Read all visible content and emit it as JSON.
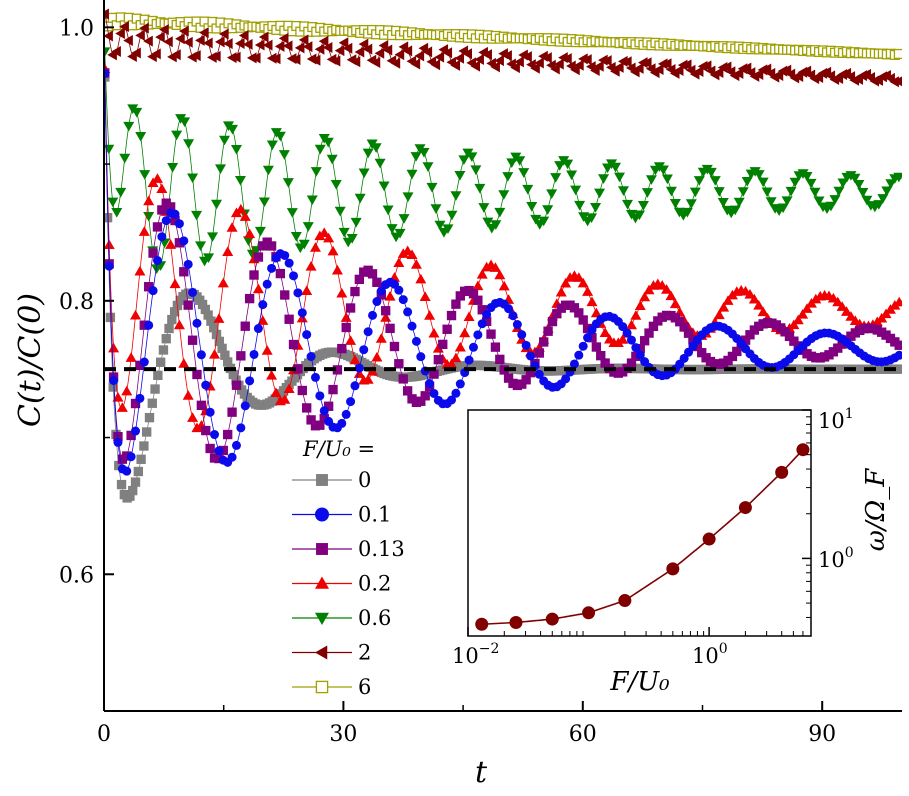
{
  "chart_data": [
    {
      "type": "scatter",
      "title": "",
      "xlabel": "t",
      "ylabel": "C(t)/C(0)",
      "xlim": [
        0,
        100
      ],
      "ylim": [
        0.5,
        1.02
      ],
      "x_ticks": [
        "0",
        "30",
        "60",
        "90"
      ],
      "y_ticks": [
        "0.6",
        "0.8",
        "1.0"
      ],
      "legend_title": "F/U0 =",
      "legend_position": "lower-left",
      "reference_line": {
        "style": "dashed",
        "color": "#000000",
        "value": 0.75
      },
      "series": [
        {
          "name": "0",
          "marker": "square",
          "color": "#808080",
          "F": 0,
          "amplitude": 0.14,
          "frequency": 0.35,
          "decay_time": 12,
          "level": 0.75
        },
        {
          "name": "0.1",
          "marker": "circle",
          "color": "#0a0aea",
          "F": 0.1,
          "amplitude": 0.125,
          "frequency": 0.46,
          "decay_time": 38,
          "level": 0.765
        },
        {
          "name": "0.13",
          "marker": "square",
          "color": "#800080",
          "F": 0.13,
          "amplitude": 0.125,
          "frequency": 0.5,
          "decay_time": 38,
          "level": 0.77
        },
        {
          "name": "0.2",
          "marker": "triangle-up",
          "color": "#f00000",
          "F": 0.2,
          "amplitude": 0.115,
          "frequency": 0.6,
          "decay_time": 40,
          "level": 0.792
        },
        {
          "name": "0.6",
          "marker": "triangle-down",
          "color": "#008000",
          "F": 0.6,
          "amplitude": 0.065,
          "frequency": 1.05,
          "decay_time": 55,
          "level": 0.88
        },
        {
          "name": "2",
          "marker": "triangle-left",
          "color": "#800000",
          "F": 2,
          "amplitude": 0.012,
          "frequency": 2.5,
          "decay_time": 60,
          "level": 0.99
        },
        {
          "name": "6",
          "marker": "square-open",
          "color": "#a0a000",
          "F": 6,
          "amplitude": 0.003,
          "frequency": 6.0,
          "decay_time": 60,
          "level": 1.005
        }
      ]
    },
    {
      "type": "line",
      "title": "",
      "xlabel": "F/U0",
      "ylabel": "ω/ΩF",
      "xscale": "log",
      "yscale": "log",
      "xlim": [
        0.01,
        7
      ],
      "ylim": [
        0.3,
        10
      ],
      "x_ticks": [
        "10^-2",
        "10^0"
      ],
      "y_ticks": [
        "10^0",
        "10^1"
      ],
      "color": "#800000",
      "x": [
        0.013,
        0.025,
        0.05,
        0.1,
        0.2,
        0.5,
        1.0,
        2.0,
        4.0,
        6.0
      ],
      "y": [
        0.36,
        0.37,
        0.39,
        0.43,
        0.52,
        0.85,
        1.35,
        2.2,
        3.8,
        5.4
      ]
    }
  ],
  "axis_text": {
    "y_label_main": "C(t)/C(0)",
    "x_label_main": "t",
    "legend_title": "F/U₀ =",
    "inset_xlabel": "F/U₀",
    "inset_ylabel": "ω/Ω_F",
    "inset_x_ticks": [
      "10",
      "10"
    ],
    "inset_x_exps": [
      "−2",
      "0"
    ],
    "inset_y_ticks": [
      "10",
      "10"
    ],
    "inset_y_exps": [
      "0",
      "1"
    ]
  }
}
